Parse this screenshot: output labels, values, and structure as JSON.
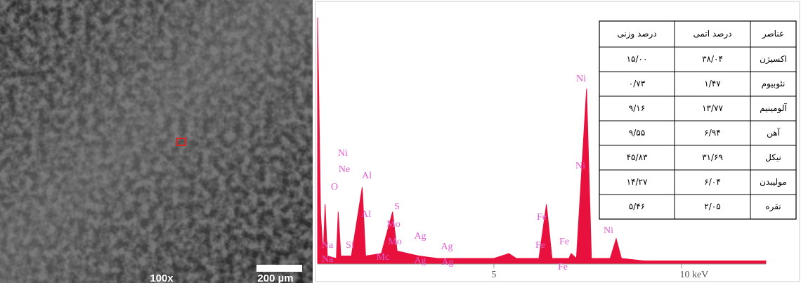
{
  "sem_image": {
    "magnification": "100x",
    "scale_bar": "200 µm"
  },
  "chart_data": {
    "type": "area",
    "color": "#e8103c",
    "x": [
      0.3,
      0.38,
      0.45,
      0.5,
      0.56,
      0.8,
      0.85,
      0.92,
      1.2,
      1.49,
      1.58,
      2.0,
      2.3,
      2.42,
      3.0,
      3.5,
      5.0,
      5.4,
      5.6,
      6.2,
      6.4,
      6.55,
      7.0,
      7.06,
      7.2,
      7.47,
      7.6,
      8.1,
      8.26,
      8.4,
      9.0,
      12.25
    ],
    "y": [
      100,
      20,
      3,
      24,
      3,
      2,
      21,
      3,
      3,
      31,
      3,
      4,
      21,
      5,
      3,
      2,
      2,
      4,
      2,
      2,
      24,
      2,
      2,
      4,
      2,
      71,
      2,
      2,
      10,
      2,
      1,
      1
    ],
    "xlim": [
      0.3,
      12.25
    ],
    "ylim": [
      0,
      100
    ],
    "xticks": [
      5,
      {
        "value": 10,
        "label": "10 keV"
      }
    ],
    "annotations": [
      "Ni",
      "Ni",
      "Fe",
      "Fe",
      "Fe",
      "Fe",
      "Ni",
      "Ni",
      "Ne",
      "O",
      "Al",
      "Al",
      "S",
      "Mo",
      "Mo",
      "Mc",
      "Ag",
      "Ag",
      "Ag",
      "Ag",
      "Na",
      "Na",
      "Si"
    ]
  },
  "table": {
    "header": [
      "عناصر",
      "درصد اتمی",
      "درصد وزنی"
    ],
    "rows": [
      [
        "اکسیژن",
        "۳۸/۰۴",
        "۱۵/۰۰"
      ],
      [
        "نئوبیوم",
        "۱/۴۷",
        "۰/۷۳"
      ],
      [
        "آلومینیم",
        "۱۳/۷۷",
        "۹/۱۶"
      ],
      [
        "آهن",
        "۶/۹۴",
        "۹/۵۵"
      ],
      [
        "نیکل",
        "۳۱/۶۹",
        "۴۵/۸۳"
      ],
      [
        "مولیبدن",
        "۶/۰۴",
        "۱۴/۲۷"
      ],
      [
        "نقره",
        "۲/۰۵",
        "۵/۴۶"
      ]
    ]
  }
}
